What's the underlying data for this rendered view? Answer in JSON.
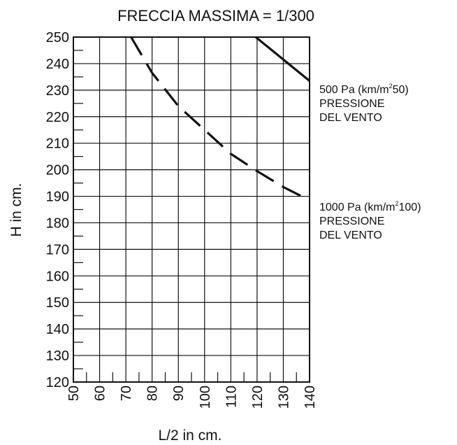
{
  "chart_data": {
    "type": "line",
    "title": "FRECCIA MASSIMA = 1/300",
    "xlabel": "L/2 in cm.",
    "ylabel": "H in cm.",
    "xlim": [
      50,
      140
    ],
    "ylim": [
      120,
      250
    ],
    "x_ticks": [
      50,
      60,
      70,
      80,
      90,
      100,
      110,
      120,
      130,
      140
    ],
    "y_ticks": [
      120,
      130,
      140,
      150,
      160,
      170,
      180,
      190,
      200,
      210,
      220,
      230,
      240,
      250
    ],
    "grid": true,
    "series": [
      {
        "name_lines": [
          "500 Pa (km/m",
          "2",
          "50)",
          "PRESSIONE",
          "DEL VENTO"
        ],
        "style": "solid",
        "x": [
          119.5,
          140
        ],
        "y": [
          250,
          233.5
        ]
      },
      {
        "name_lines": [
          "1000 Pa (km/m",
          "2",
          "100)",
          "PRESSIONE",
          "DEL VENTO"
        ],
        "style": "dashed",
        "x": [
          72,
          80,
          90,
          100,
          110,
          120,
          130,
          140
        ],
        "y": [
          250,
          236.5,
          224,
          215,
          206,
          199.5,
          193.5,
          188.5
        ]
      }
    ],
    "colors": {
      "background": "#ffffff",
      "ink": "#111111"
    }
  }
}
